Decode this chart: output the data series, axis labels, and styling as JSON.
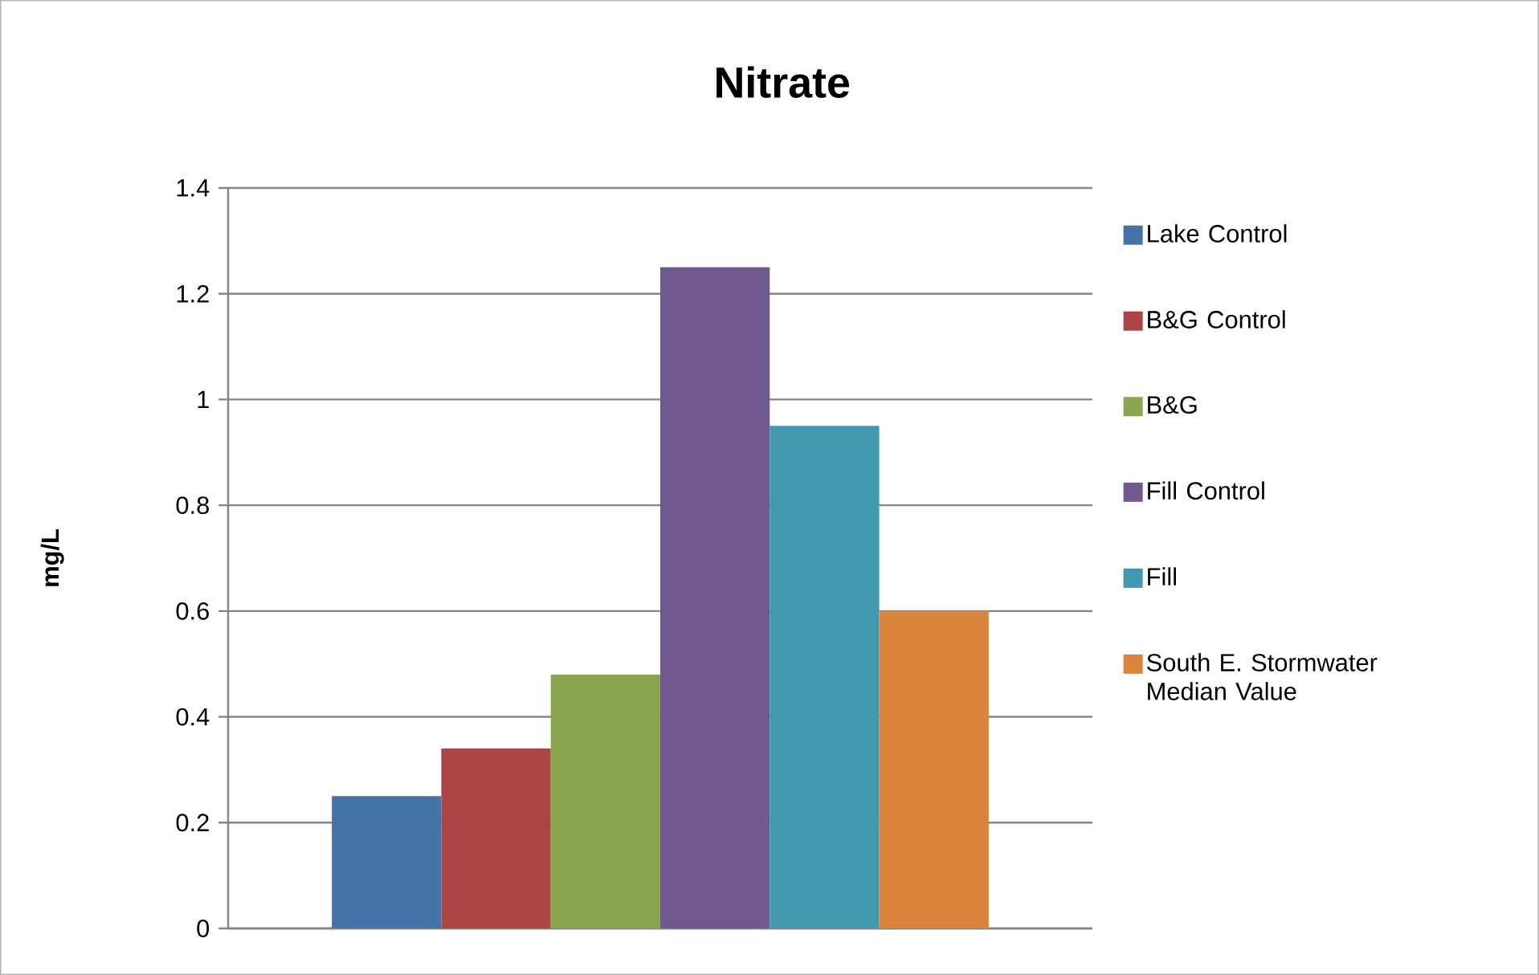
{
  "chart_data": {
    "type": "bar",
    "title": "Nitrate",
    "ylabel": "mg/L",
    "categories": [
      null
    ],
    "series": [
      {
        "name": "Lake Control",
        "color": "#4572a7",
        "values": [
          0.25
        ]
      },
      {
        "name": "B&G Control",
        "color": "#aa4643",
        "values": [
          0.34
        ]
      },
      {
        "name": "B&G",
        "color": "#89a54e",
        "values": [
          0.48
        ]
      },
      {
        "name": "Fill Control",
        "color": "#71588f",
        "values": [
          1.25
        ]
      },
      {
        "name": "Fill",
        "color": "#4198af",
        "values": [
          0.95
        ]
      },
      {
        "name": "South E. Stormwater Median Value",
        "color": "#db843d",
        "values": [
          0.6
        ]
      }
    ],
    "ylim": [
      0,
      1.4
    ],
    "yticks": [
      0,
      0.2,
      0.4,
      0.6,
      0.8,
      1,
      1.2,
      1.4
    ],
    "grid": "y",
    "legend": "right"
  }
}
